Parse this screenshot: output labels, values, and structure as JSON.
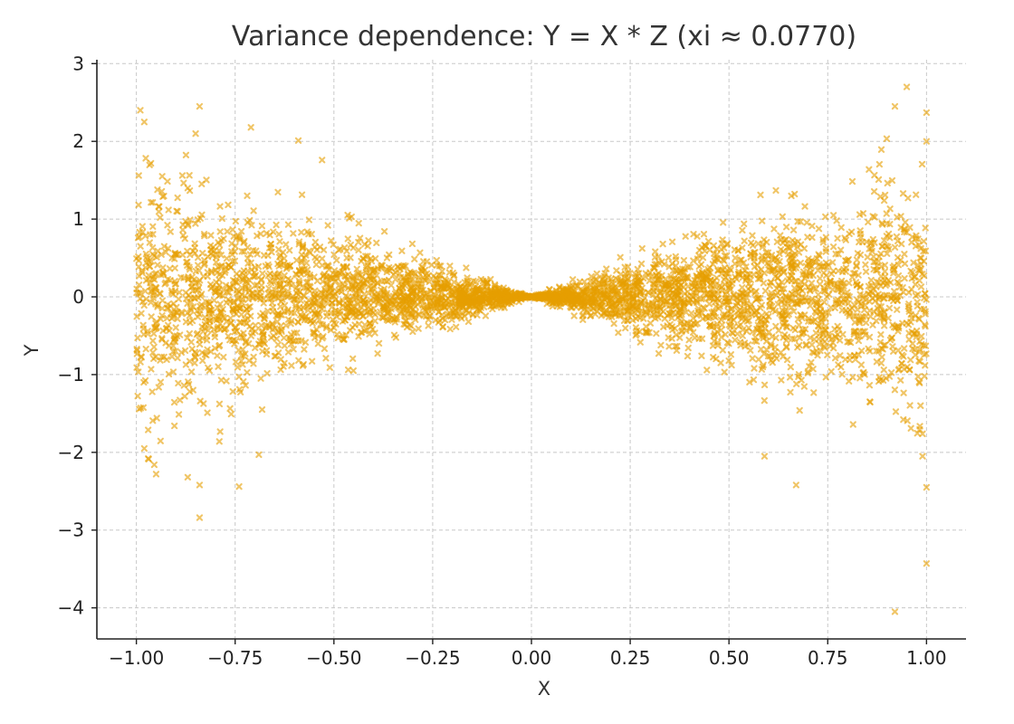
{
  "chart_data": {
    "type": "scatter",
    "title": "Variance dependence: Y = X * Z  (xi ≈ 0.0770)",
    "xlabel": "X",
    "ylabel": "Y",
    "xlim": [
      -1.1,
      1.1
    ],
    "ylim": [
      -4.4,
      3.05
    ],
    "grid": true,
    "marker": "x",
    "point_count": 4000,
    "point_color": "#E69F00",
    "point_opacity": 0.6,
    "x_ticks": [
      {
        "value": -1.0,
        "label": "−1.00"
      },
      {
        "value": -0.75,
        "label": "−0.75"
      },
      {
        "value": -0.5,
        "label": "−0.50"
      },
      {
        "value": -0.25,
        "label": "−0.25"
      },
      {
        "value": 0.0,
        "label": "0.00"
      },
      {
        "value": 0.25,
        "label": "0.25"
      },
      {
        "value": 0.5,
        "label": "0.50"
      },
      {
        "value": 0.75,
        "label": "0.75"
      },
      {
        "value": 1.0,
        "label": "1.00"
      }
    ],
    "y_ticks": [
      {
        "value": 3,
        "label": "3"
      },
      {
        "value": 2,
        "label": "2"
      },
      {
        "value": 1,
        "label": "1"
      },
      {
        "value": 0,
        "label": "0"
      },
      {
        "value": -1,
        "label": "−1"
      },
      {
        "value": -2,
        "label": "−2"
      },
      {
        "value": -3,
        "label": "−3"
      },
      {
        "value": -4,
        "label": "−4"
      }
    ],
    "notable_points": [
      {
        "x": -0.99,
        "y": 2.4
      },
      {
        "x": -0.98,
        "y": 2.25
      },
      {
        "x": -0.84,
        "y": 2.45
      },
      {
        "x": -0.85,
        "y": 2.1
      },
      {
        "x": -0.71,
        "y": 2.18
      },
      {
        "x": -0.59,
        "y": 2.01
      },
      {
        "x": -0.53,
        "y": 1.76
      },
      {
        "x": 0.92,
        "y": 2.45
      },
      {
        "x": 0.95,
        "y": 2.7
      },
      {
        "x": 1.0,
        "y": 2.37
      },
      {
        "x": 1.0,
        "y": 2.0
      },
      {
        "x": -0.97,
        "y": -2.08
      },
      {
        "x": -0.95,
        "y": -2.28
      },
      {
        "x": -0.87,
        "y": -2.32
      },
      {
        "x": -0.84,
        "y": -2.42
      },
      {
        "x": -0.84,
        "y": -2.84
      },
      {
        "x": -0.79,
        "y": -1.86
      },
      {
        "x": -0.74,
        "y": -2.44
      },
      {
        "x": -0.69,
        "y": -2.03
      },
      {
        "x": 0.59,
        "y": -2.05
      },
      {
        "x": 0.67,
        "y": -2.42
      },
      {
        "x": 0.92,
        "y": -4.05
      },
      {
        "x": 0.99,
        "y": -2.05
      },
      {
        "x": 1.0,
        "y": -2.45
      },
      {
        "x": 1.0,
        "y": -3.43
      },
      {
        "x": -0.98,
        "y": -1.95
      }
    ]
  }
}
